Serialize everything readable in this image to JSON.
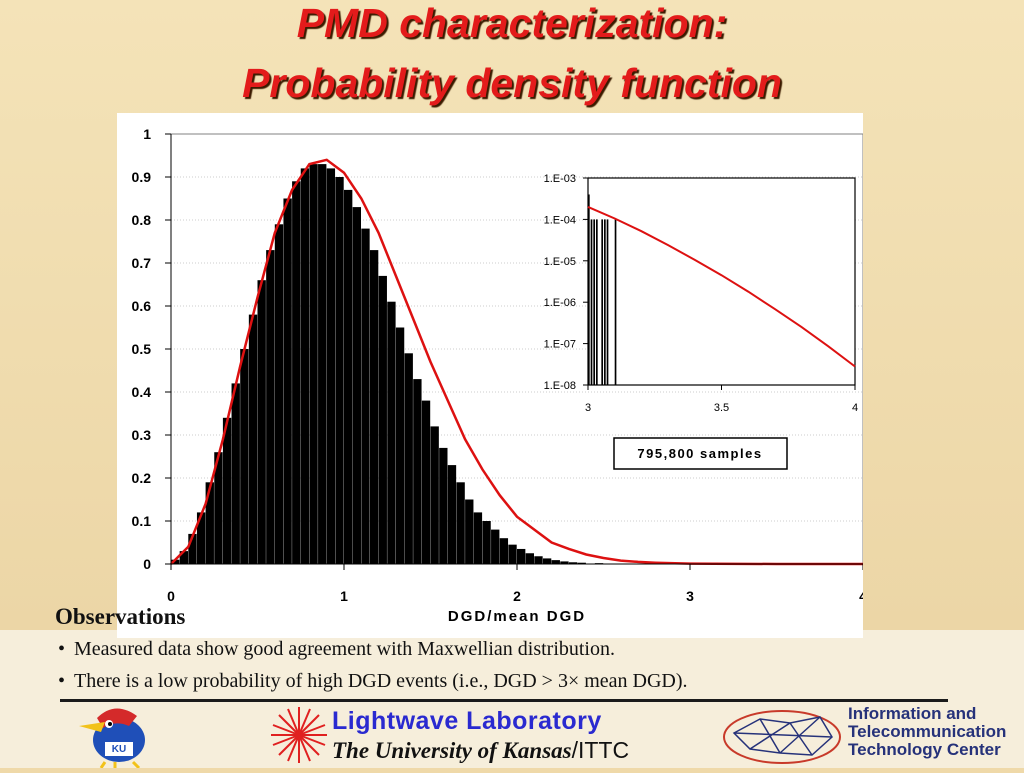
{
  "slide": {
    "title_line1": "PMD characterization:",
    "title_line2": "Probability density function",
    "observations_heading": "Observations",
    "bullets": [
      "Measured data show good agreement with Maxwellian distribution.",
      "There is a low probability of high DGD events (i.e., DGD > 3× mean DGD)."
    ],
    "bullet_symbol": "•",
    "footer": {
      "lab_name": "Lightwave Laboratory",
      "university": "The University of Kansas",
      "suffix": "/ITTC",
      "ku_badge": "KU",
      "ittc_line1": "Information and",
      "ittc_line2": "Telecommunication",
      "ittc_line3": "Technology Center"
    },
    "colors": {
      "title": "#e31b1b",
      "curve": "#dd1111",
      "bars": "#000000",
      "lab_blue": "#2a2ad0",
      "ittc_blue": "#26327a"
    }
  },
  "chart_data": [
    {
      "type": "bar",
      "xlabel": "DGD/mean DGD",
      "ylabel": "",
      "xlim": [
        0,
        4
      ],
      "ylim": [
        0,
        1
      ],
      "x_ticks": [
        "0",
        "1",
        "2",
        "3",
        "4"
      ],
      "y_ticks": [
        "0",
        "0.1",
        "0.2",
        "0.3",
        "0.4",
        "0.5",
        "0.6",
        "0.7",
        "0.8",
        "0.9",
        "1"
      ],
      "grid": "horizontal dotted",
      "legend": "none",
      "annotation": "795,800 samples",
      "series": [
        {
          "kind": "histogram",
          "x": [
            0.05,
            0.1,
            0.15,
            0.2,
            0.25,
            0.3,
            0.35,
            0.4,
            0.45,
            0.5,
            0.55,
            0.6,
            0.65,
            0.7,
            0.75,
            0.8,
            0.85,
            0.9,
            0.95,
            1.0,
            1.05,
            1.1,
            1.15,
            1.2,
            1.25,
            1.3,
            1.35,
            1.4,
            1.45,
            1.5,
            1.55,
            1.6,
            1.65,
            1.7,
            1.75,
            1.8,
            1.85,
            1.9,
            1.95,
            2.0,
            2.05,
            2.1,
            2.15,
            2.2,
            2.25,
            2.3,
            2.35,
            2.4,
            2.5,
            2.6,
            2.7,
            2.8,
            2.9,
            3.0
          ],
          "values": [
            0.01,
            0.03,
            0.07,
            0.12,
            0.19,
            0.26,
            0.34,
            0.42,
            0.5,
            0.58,
            0.66,
            0.73,
            0.79,
            0.85,
            0.89,
            0.92,
            0.93,
            0.93,
            0.92,
            0.9,
            0.87,
            0.83,
            0.78,
            0.73,
            0.67,
            0.61,
            0.55,
            0.49,
            0.43,
            0.38,
            0.32,
            0.27,
            0.23,
            0.19,
            0.15,
            0.12,
            0.1,
            0.08,
            0.06,
            0.045,
            0.035,
            0.025,
            0.018,
            0.013,
            0.009,
            0.006,
            0.004,
            0.003,
            0.002,
            0.001,
            0.001,
            0.0,
            0.0,
            0.0
          ]
        },
        {
          "kind": "line",
          "x": [
            0,
            0.1,
            0.2,
            0.3,
            0.4,
            0.5,
            0.6,
            0.7,
            0.8,
            0.9,
            1.0,
            1.1,
            1.2,
            1.3,
            1.4,
            1.5,
            1.6,
            1.7,
            1.8,
            1.9,
            2.0,
            2.1,
            2.2,
            2.3,
            2.4,
            2.5,
            2.6,
            2.7,
            2.8,
            3.0,
            3.5,
            4.0
          ],
          "values": [
            0,
            0.04,
            0.14,
            0.29,
            0.46,
            0.62,
            0.77,
            0.87,
            0.93,
            0.94,
            0.91,
            0.85,
            0.77,
            0.67,
            0.57,
            0.47,
            0.38,
            0.29,
            0.22,
            0.16,
            0.11,
            0.08,
            0.05,
            0.035,
            0.022,
            0.014,
            0.008,
            0.005,
            0.003,
            0.001,
            0.0,
            0.0
          ]
        }
      ]
    },
    {
      "type": "line",
      "inset": true,
      "xlim": [
        3,
        4
      ],
      "ylim": [
        1e-08,
        0.001
      ],
      "yscale": "log",
      "x_ticks": [
        "3",
        "3.5",
        "4"
      ],
      "y_ticks": [
        "1.E-08",
        "1.E-07",
        "1.E-06",
        "1.E-05",
        "1.E-04",
        "1.E-03"
      ],
      "series": [
        {
          "kind": "histogram",
          "x": [
            3.0,
            3.01,
            3.02,
            3.03,
            3.04,
            3.05,
            3.06,
            3.07,
            3.08,
            3.09,
            3.1
          ],
          "values": [
            0.0004,
            0.0001,
            0.0001,
            0.0001,
            1e-08,
            0.0001,
            0.0001,
            0.0001,
            1e-08,
            1e-08,
            0.0001
          ]
        },
        {
          "kind": "line",
          "x": [
            3.0,
            3.1,
            3.2,
            3.3,
            3.4,
            3.5,
            3.6,
            3.7,
            3.8,
            3.9,
            4.0
          ],
          "values": [
            0.0002,
            0.000105,
            5.2e-05,
            2.4e-05,
            1.05e-05,
            4.5e-06,
            1.8e-06,
            6.8e-07,
            2.5e-07,
            8.6e-08,
            2.8e-08
          ]
        }
      ]
    }
  ]
}
